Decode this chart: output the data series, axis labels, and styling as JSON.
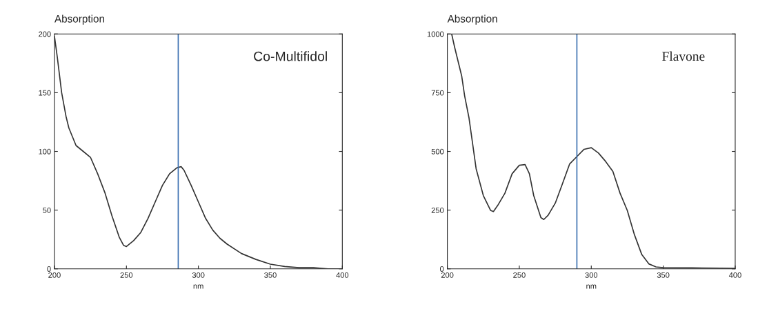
{
  "chart_data": [
    {
      "type": "line",
      "xlabel": "nm",
      "ylabel": "Absorption",
      "annotations": [
        "Co-Multifidol"
      ],
      "x": [
        200,
        202,
        205,
        208,
        210,
        215,
        220,
        225,
        230,
        235,
        240,
        245,
        248,
        250,
        255,
        260,
        265,
        270,
        275,
        280,
        285,
        288,
        290,
        295,
        300,
        305,
        310,
        315,
        320,
        330,
        340,
        350,
        360,
        370,
        380,
        390,
        400
      ],
      "series": [
        {
          "color": "#333333",
          "values": [
            198,
            180,
            150,
            130,
            120,
            105,
            100,
            95,
            81,
            65,
            45,
            27,
            20,
            19,
            24,
            31,
            43,
            57,
            71,
            81,
            86,
            87,
            84,
            71,
            57,
            43,
            33,
            26,
            21,
            13,
            8,
            4,
            2,
            1,
            1,
            0,
            0
          ]
        }
      ],
      "xlim": [
        200,
        400
      ],
      "ylim": [
        0,
        200
      ],
      "xticks": [
        200,
        250,
        300,
        350,
        400
      ],
      "yticks": [
        0,
        50,
        100,
        150,
        200
      ],
      "ref_lines": [
        {
          "axis": "x",
          "value": 286,
          "color": "#3a6fb0"
        }
      ],
      "grid": false,
      "legend": false
    },
    {
      "type": "line",
      "xlabel": "nm",
      "ylabel": "Absorption",
      "annotations": [
        "Flavone"
      ],
      "x": [
        203,
        205,
        210,
        212,
        215,
        220,
        225,
        230,
        232,
        235,
        240,
        245,
        250,
        254,
        257,
        260,
        265,
        267,
        270,
        275,
        280,
        285,
        290,
        295,
        300,
        305,
        310,
        315,
        320,
        325,
        330,
        335,
        340,
        345,
        350,
        370,
        390,
        400
      ],
      "series": [
        {
          "color": "#333333",
          "values": [
            1000,
            945,
            820,
            737,
            644,
            426,
            312,
            249,
            244,
            270,
            322,
            405,
            441,
            444,
            405,
            312,
            218,
            210,
            228,
            280,
            363,
            447,
            478,
            509,
            516,
            493,
            457,
            415,
            322,
            249,
            145,
            62,
            21,
            8,
            5,
            4,
            3,
            2
          ]
        }
      ],
      "xlim": [
        200,
        400
      ],
      "ylim": [
        0,
        1000
      ],
      "xticks": [
        200,
        250,
        300,
        350,
        400
      ],
      "yticks": [
        0,
        250,
        500,
        750,
        1000
      ],
      "ref_lines": [
        {
          "axis": "x",
          "value": 290,
          "color": "#3a6fb0"
        }
      ],
      "grid": false,
      "legend": false
    }
  ]
}
